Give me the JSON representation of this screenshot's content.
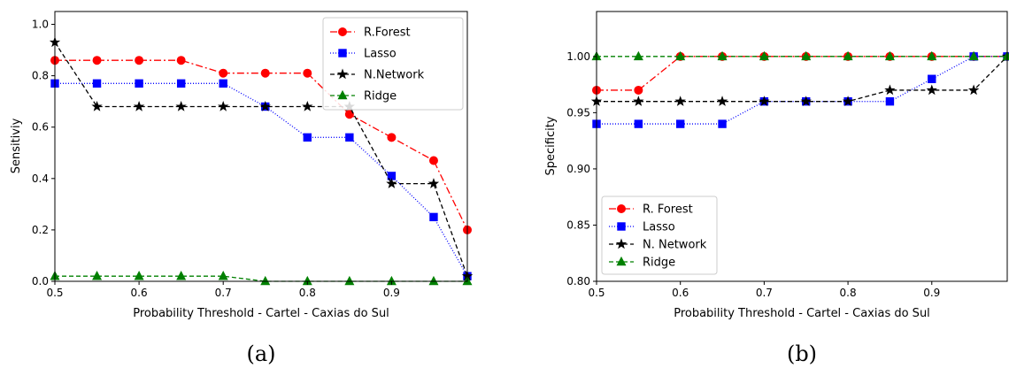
{
  "chart_data": [
    {
      "type": "line",
      "panel_label": "(a)",
      "xlabel": "Probability Threshold - Cartel - Caxias do Sul",
      "ylabel": "Sensitiviy",
      "xlim": [
        0.5,
        0.99
      ],
      "ylim": [
        0.0,
        1.05
      ],
      "xticks": [
        0.5,
        0.6,
        0.7,
        0.8,
        0.9
      ],
      "xtick_labels": [
        "0.5",
        "0.6",
        "0.7",
        "0.8",
        "0.9"
      ],
      "yticks": [
        0.0,
        0.2,
        0.4,
        0.6,
        0.8,
        1.0
      ],
      "ytick_labels": [
        "0.0",
        "0.2",
        "0.4",
        "0.6",
        "0.8",
        "1.0"
      ],
      "legend_position": "top-right",
      "grid": false,
      "x": [
        0.5,
        0.55,
        0.6,
        0.65,
        0.7,
        0.75,
        0.8,
        0.85,
        0.9,
        0.95,
        0.99
      ],
      "series": [
        {
          "name": "R.Forest",
          "color": "#ff0000",
          "dash": "8,3,2,3",
          "marker": "circle",
          "values": [
            0.86,
            0.86,
            0.86,
            0.86,
            0.81,
            0.81,
            0.81,
            0.65,
            0.56,
            0.47,
            0.2
          ]
        },
        {
          "name": "Lasso",
          "color": "#0000ff",
          "dash": "1,2",
          "marker": "square",
          "values": [
            0.77,
            0.77,
            0.77,
            0.77,
            0.77,
            0.68,
            0.56,
            0.56,
            0.41,
            0.25,
            0.02
          ]
        },
        {
          "name": "N.Network",
          "color": "#000000",
          "dash": "5,3",
          "marker": "star",
          "values": [
            0.93,
            0.68,
            0.68,
            0.68,
            0.68,
            0.68,
            0.68,
            0.68,
            0.38,
            0.38,
            0.02
          ]
        },
        {
          "name": "Ridge",
          "color": "#008000",
          "dash": "5,3",
          "marker": "triangle",
          "values": [
            0.02,
            0.02,
            0.02,
            0.02,
            0.02,
            0.0,
            0.0,
            0.0,
            0.0,
            0.0,
            0.0
          ]
        }
      ]
    },
    {
      "type": "line",
      "panel_label": "(b)",
      "xlabel": "Probability Threshold - Cartel  - Caxias do Sul",
      "ylabel": "Specificity",
      "xlim": [
        0.5,
        0.99
      ],
      "ylim": [
        0.8,
        1.04
      ],
      "xticks": [
        0.5,
        0.6,
        0.7,
        0.8,
        0.9
      ],
      "xtick_labels": [
        "0.5",
        "0.6",
        "0.7",
        "0.8",
        "0.9"
      ],
      "yticks": [
        0.8,
        0.85,
        0.9,
        0.95,
        1.0
      ],
      "ytick_labels": [
        "0.80",
        "0.85",
        "0.90",
        "0.95",
        "1.00"
      ],
      "legend_position": "bottom-left",
      "grid": false,
      "x": [
        0.5,
        0.55,
        0.6,
        0.65,
        0.7,
        0.75,
        0.8,
        0.85,
        0.9,
        0.95,
        0.99
      ],
      "series": [
        {
          "name": "R. Forest",
          "color": "#ff0000",
          "dash": "8,3,2,3",
          "marker": "circle",
          "values": [
            0.97,
            0.97,
            1.0,
            1.0,
            1.0,
            1.0,
            1.0,
            1.0,
            1.0,
            1.0,
            1.0
          ]
        },
        {
          "name": "Lasso",
          "color": "#0000ff",
          "dash": "1,2",
          "marker": "square",
          "values": [
            0.94,
            0.94,
            0.94,
            0.94,
            0.96,
            0.96,
            0.96,
            0.96,
            0.98,
            1.0,
            1.0
          ]
        },
        {
          "name": "N. Network",
          "color": "#000000",
          "dash": "5,3",
          "marker": "star",
          "values": [
            0.96,
            0.96,
            0.96,
            0.96,
            0.96,
            0.96,
            0.96,
            0.97,
            0.97,
            0.97,
            1.0
          ]
        },
        {
          "name": "Ridge",
          "color": "#008000",
          "dash": "5,3",
          "marker": "triangle",
          "values": [
            1.0,
            1.0,
            1.0,
            1.0,
            1.0,
            1.0,
            1.0,
            1.0,
            1.0,
            1.0,
            1.0
          ]
        }
      ]
    }
  ]
}
